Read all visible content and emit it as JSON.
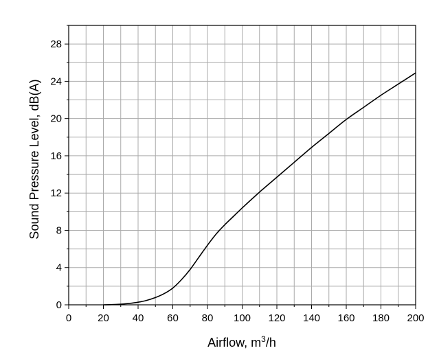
{
  "chart_data": {
    "type": "line",
    "title": "",
    "xlabel": "Airflow, m",
    "xlabel_sup": "3",
    "xlabel_suffix": "/h",
    "ylabel": "Sound Pressure Level, dB(A)",
    "xlim": [
      0,
      200
    ],
    "ylim": [
      0,
      30
    ],
    "x_ticks": [
      0,
      20,
      40,
      60,
      80,
      100,
      120,
      140,
      160,
      180,
      200
    ],
    "y_ticks": [
      0,
      4,
      8,
      12,
      16,
      20,
      24,
      28
    ],
    "x_grid_step": 10,
    "y_grid_step": 2,
    "grid": true,
    "series": [
      {
        "x": [
          20,
          25,
          30,
          35,
          40,
          45,
          50,
          55,
          60,
          65,
          70,
          75,
          80,
          85,
          90,
          95,
          100,
          110,
          120,
          130,
          140,
          150,
          160,
          170,
          180,
          190,
          200
        ],
        "y": [
          0.0,
          0.02,
          0.07,
          0.15,
          0.28,
          0.48,
          0.78,
          1.2,
          1.8,
          2.7,
          3.8,
          5.1,
          6.4,
          7.6,
          8.6,
          9.5,
          10.4,
          12.1,
          13.7,
          15.3,
          16.9,
          18.4,
          19.9,
          21.2,
          22.5,
          23.7,
          24.9
        ]
      }
    ],
    "colors": {
      "line": "#000000",
      "grid": "#aaaaaa",
      "axis": "#000000"
    }
  }
}
